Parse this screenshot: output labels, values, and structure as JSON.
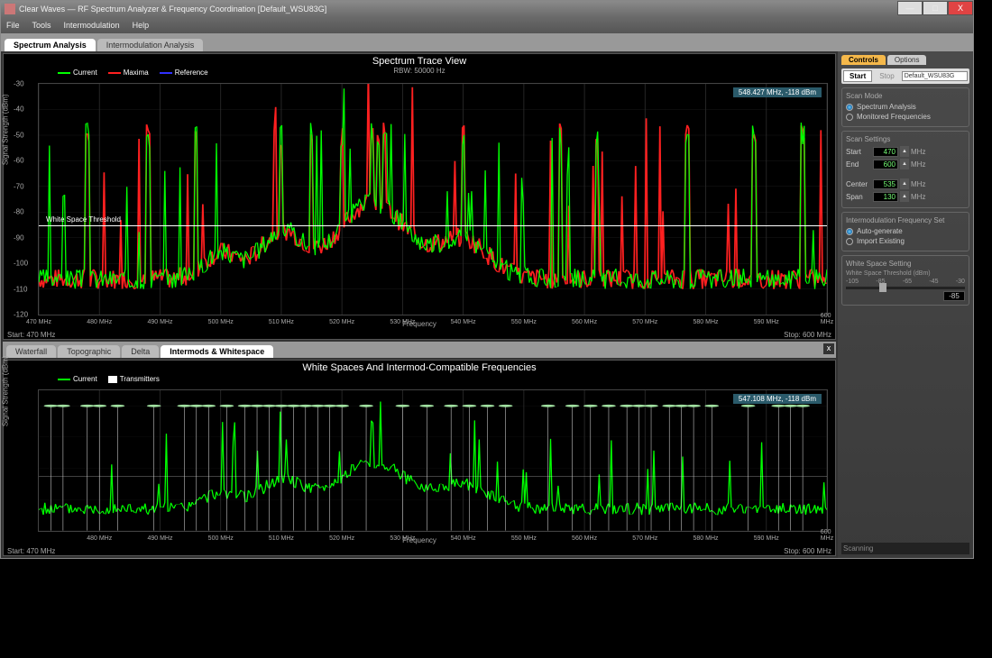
{
  "window": {
    "title": "Clear Waves — RF Spectrum Analyzer & Frequency Coordination [Default_WSU83G]",
    "min": "—",
    "max": "□",
    "close": "X"
  },
  "menu": [
    "File",
    "Tools",
    "Intermodulation",
    "Help"
  ],
  "mainTabs": {
    "items": [
      "Spectrum Analysis",
      "Intermodulation Analysis"
    ],
    "active": 0
  },
  "topChart": {
    "title": "Spectrum Trace View",
    "subtitle": "RBW: 50000 Hz",
    "legend": [
      {
        "label": "Current",
        "color": "#00ff00"
      },
      {
        "label": "Maxima",
        "color": "#ff2020"
      },
      {
        "label": "Reference",
        "color": "#3030ff"
      }
    ],
    "ylabel": "Signal Strength (dBm)",
    "xlabel": "Frequency",
    "xrange": [
      470,
      600
    ],
    "yrange": [
      -120,
      -30
    ],
    "xticks": [
      470,
      480,
      490,
      500,
      510,
      520,
      530,
      540,
      550,
      560,
      570,
      580,
      590,
      600
    ],
    "yticks": [
      -30,
      -40,
      -50,
      -60,
      -70,
      -80,
      -90,
      -100,
      -110,
      -120
    ],
    "xunit": "MHz",
    "thresholdY": -85,
    "thresholdLabel": "White Space Threshold",
    "readout": "548.427 MHz, -118 dBm",
    "startLabel": "Start: 470 MHz",
    "stopLabel": "Stop: 600 MHz",
    "colors": {
      "grid": "#333333",
      "bg": "#000000",
      "text": "#ffffff"
    }
  },
  "midTabs": {
    "items": [
      "Waterfall",
      "Topographic",
      "Delta",
      "Intermods & Whitespace"
    ],
    "active": 3,
    "closeX": "x"
  },
  "botChart": {
    "title": "White Spaces And Intermod-Compatible Frequencies",
    "legend": [
      {
        "label": "Current",
        "color": "#00ff00",
        "type": "line"
      },
      {
        "label": "Transmitters",
        "color": "#ffffff",
        "type": "box"
      }
    ],
    "ylabel": "Signal Strength (dBm)",
    "xlabel": "Frequency",
    "xrange": [
      470,
      600
    ],
    "yrange": [
      -120,
      -30
    ],
    "xticks": [
      480,
      490,
      500,
      510,
      520,
      530,
      540,
      550,
      560,
      570,
      580,
      590,
      600
    ],
    "xunit": "MHz",
    "readout": "547.108 MHz, -118 dBm",
    "startLabel": "Start: 470 MHz",
    "stopLabel": "Stop: 600 MHz",
    "txMarkers": [
      472,
      474,
      478,
      480,
      483,
      489,
      494,
      496,
      498,
      501,
      504,
      506,
      508,
      510,
      512,
      514,
      516,
      518,
      520,
      524,
      530,
      534,
      538,
      541,
      544,
      547,
      554,
      558,
      561,
      564,
      567,
      569,
      571,
      574,
      576,
      578,
      581,
      587,
      592,
      594,
      596
    ],
    "txDotColor": "#a0e0a0",
    "txLineColor": "#dddddd"
  },
  "controls": {
    "tabs": {
      "items": [
        "Controls",
        "Options"
      ],
      "active": 0
    },
    "start": "Start",
    "stop": "Stop",
    "preset": "Default_WSU83G",
    "scanMode": {
      "title": "Scan Mode",
      "opts": [
        "Spectrum Analysis",
        "Monitored Frequencies"
      ],
      "sel": 0
    },
    "scanSettings": {
      "title": "Scan Settings",
      "rows": [
        {
          "label": "Start",
          "value": "470",
          "unit": "MHz"
        },
        {
          "label": "End",
          "value": "600",
          "unit": "MHz"
        },
        {
          "label": "Center",
          "value": "535",
          "unit": "MHz"
        },
        {
          "label": "Span",
          "value": "130",
          "unit": "MHz"
        }
      ]
    },
    "intermod": {
      "title": "Intermodulation Frequency Set",
      "opts": [
        "Auto-generate",
        "Import Existing"
      ],
      "sel": 0
    },
    "whitespace": {
      "title": "White Space Setting",
      "sub": "White Space Threshold (dBm)",
      "ticks": [
        "-105",
        "-85",
        "-65",
        "-45",
        "-30"
      ],
      "value": "-85",
      "thumbPct": 28
    }
  },
  "status": "Scanning"
}
